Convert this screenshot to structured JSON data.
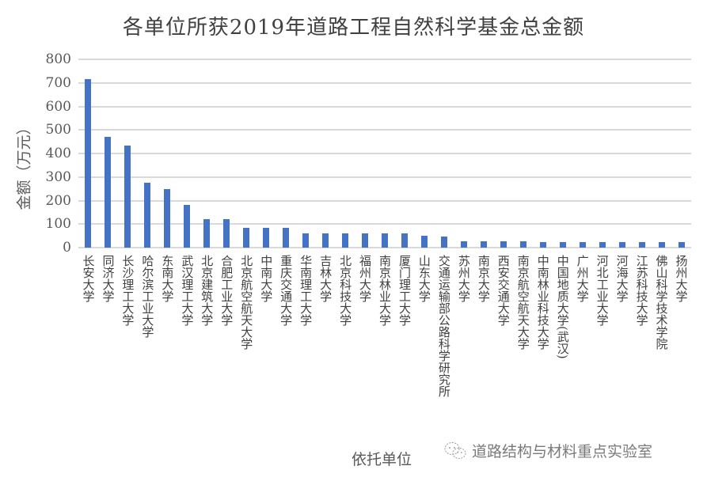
{
  "chart_data": {
    "type": "bar",
    "title": "各单位所获2019年道路工程自然科学基金总金额",
    "xlabel": "依托单位",
    "ylabel": "金额（万元）",
    "ylim": [
      0,
      800
    ],
    "yticks": [
      0,
      100,
      200,
      300,
      400,
      500,
      600,
      700,
      800
    ],
    "grid": true,
    "legend": null,
    "bar_color": "#4472c4",
    "categories": [
      "长安大学",
      "同济大学",
      "长沙理工大学",
      "哈尔滨工业大学",
      "东南大学",
      "武汉理工大学",
      "北京建筑大学",
      "合肥工业大学",
      "北京航空航天大学",
      "中南大学",
      "重庆交通大学",
      "华南理工大学",
      "吉林大学",
      "北京科技大学",
      "福州大学",
      "南京林业大学",
      "厦门理工大学",
      "山东大学",
      "交通运输部公路科学研究所",
      "苏州大学",
      "南京大学",
      "西安交通大学",
      "南京航空航天大学",
      "中南林业科技大学",
      "中国地质大学(武汉)",
      "广州大学",
      "河北工业大学",
      "河海大学",
      "江苏科技大学",
      "佛山科学技术学院",
      "扬州大学"
    ],
    "values": [
      715,
      470,
      432,
      275,
      250,
      180,
      120,
      120,
      85,
      85,
      85,
      60,
      60,
      60,
      60,
      60,
      60,
      52,
      48,
      26,
      26,
      26,
      26,
      25,
      25,
      25,
      25,
      25,
      25,
      22,
      22
    ]
  },
  "watermark": {
    "text": "道路结构与材料重点实验室",
    "icon": "wechat-icon"
  }
}
